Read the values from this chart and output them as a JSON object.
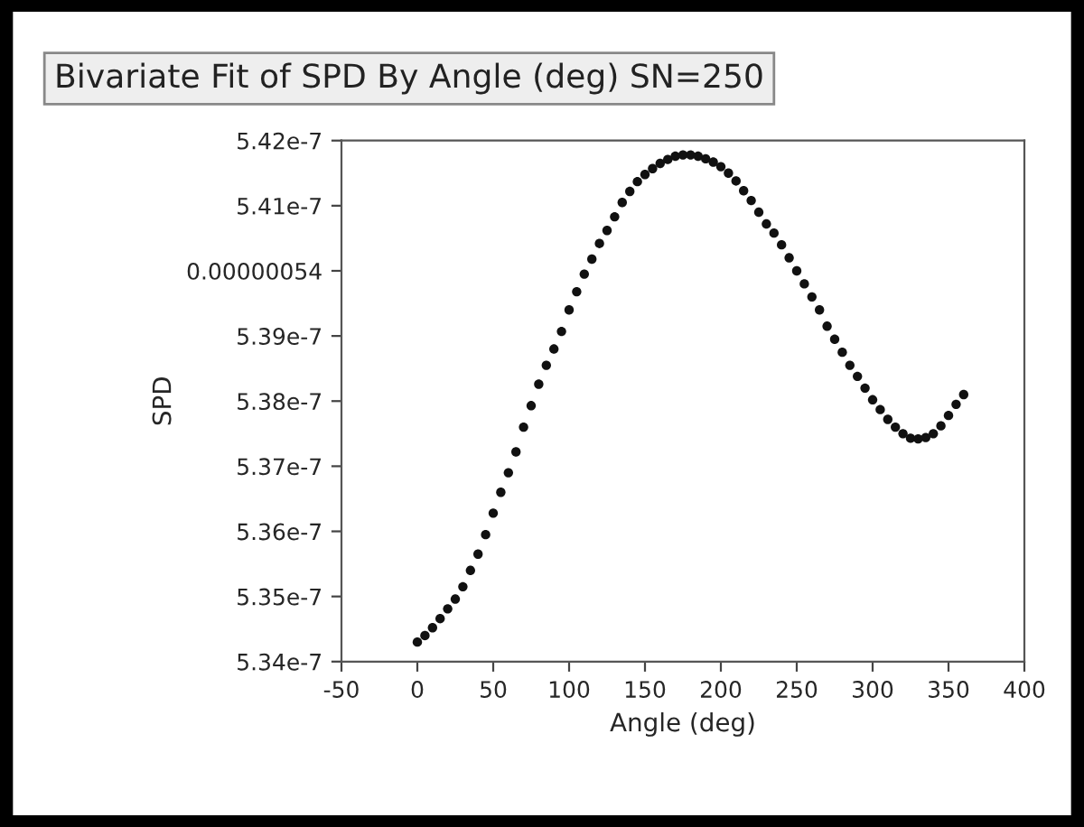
{
  "chart_data": {
    "type": "scatter",
    "title": "Bivariate Fit of SPD By Angle (deg) SN=250",
    "xlabel": "Angle (deg)",
    "ylabel": "SPD",
    "x": [
      0,
      5,
      10,
      15,
      20,
      25,
      30,
      35,
      40,
      45,
      50,
      55,
      60,
      65,
      70,
      75,
      80,
      85,
      90,
      95,
      100,
      105,
      110,
      115,
      120,
      125,
      130,
      135,
      140,
      145,
      150,
      155,
      160,
      165,
      170,
      175,
      180,
      185,
      190,
      195,
      200,
      205,
      210,
      215,
      220,
      225,
      230,
      235,
      240,
      245,
      250,
      255,
      260,
      265,
      270,
      275,
      280,
      285,
      290,
      295,
      300,
      305,
      310,
      315,
      320,
      325,
      330,
      335,
      340,
      345,
      350,
      355,
      360
    ],
    "series": [
      {
        "color": "#111111",
        "values": [
          5.343e-07,
          5.344e-07,
          5.3452e-07,
          5.3466e-07,
          5.3481e-07,
          5.3496e-07,
          5.3515e-07,
          5.354e-07,
          5.3565e-07,
          5.3595e-07,
          5.3628e-07,
          5.366e-07,
          5.369e-07,
          5.3722e-07,
          5.376e-07,
          5.3793e-07,
          5.3826e-07,
          5.3855e-07,
          5.388e-07,
          5.3907e-07,
          5.394e-07,
          5.3968e-07,
          5.3995e-07,
          5.4018e-07,
          5.4042e-07,
          5.4062e-07,
          5.4083e-07,
          5.4105e-07,
          5.4122e-07,
          5.4137e-07,
          5.4148e-07,
          5.4157e-07,
          5.4165e-07,
          5.4171e-07,
          5.4176e-07,
          5.4178e-07,
          5.4178e-07,
          5.4176e-07,
          5.4172e-07,
          5.4167e-07,
          5.416e-07,
          5.415e-07,
          5.4138e-07,
          5.4123e-07,
          5.4108e-07,
          5.409e-07,
          5.4072e-07,
          5.4058e-07,
          5.404e-07,
          5.402e-07,
          5.4e-07,
          5.398e-07,
          5.396e-07,
          5.394e-07,
          5.3915e-07,
          5.3895e-07,
          5.3875e-07,
          5.3855e-07,
          5.3838e-07,
          5.382e-07,
          5.3802e-07,
          5.3787e-07,
          5.3772e-07,
          5.376e-07,
          5.375e-07,
          5.3743e-07,
          5.3742e-07,
          5.3744e-07,
          5.375e-07,
          5.3762e-07,
          5.3778e-07,
          5.3795e-07,
          5.381e-07
        ]
      }
    ],
    "xlim": [
      -50,
      400
    ],
    "xticks": [
      -50,
      0,
      50,
      100,
      150,
      200,
      250,
      300,
      350,
      400
    ],
    "ylim": [
      5.34e-07,
      5.42e-07
    ],
    "yticks": [
      {
        "value": 5.34e-07,
        "label": "5.34e-7"
      },
      {
        "value": 5.35e-07,
        "label": "5.35e-7"
      },
      {
        "value": 5.36e-07,
        "label": "5.36e-7"
      },
      {
        "value": 5.37e-07,
        "label": "5.37e-7"
      },
      {
        "value": 5.38e-07,
        "label": "5.38e-7"
      },
      {
        "value": 5.39e-07,
        "label": "5.39e-7"
      },
      {
        "value": 5.4e-07,
        "label": "0.00000054"
      },
      {
        "value": 5.41e-07,
        "label": "5.41e-7"
      },
      {
        "value": 5.42e-07,
        "label": "5.42e-7"
      }
    ],
    "grid": false,
    "legend": false,
    "marker": "circle"
  }
}
